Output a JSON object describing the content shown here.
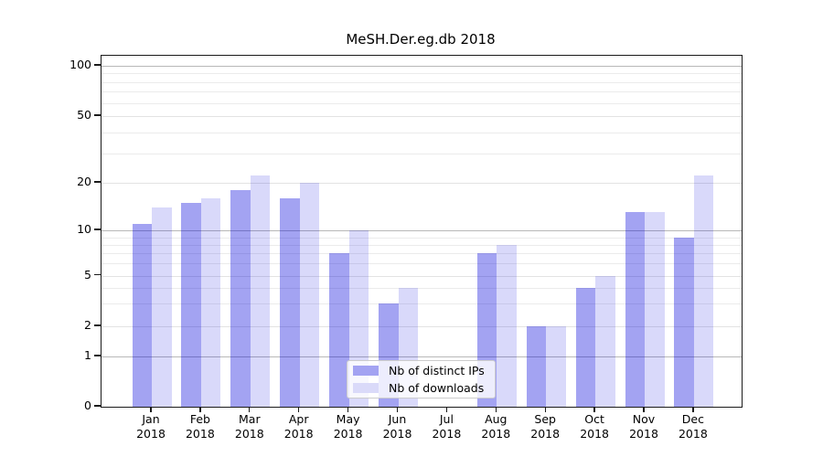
{
  "figure": {
    "title": "MeSH.Der.eg.db 2018"
  },
  "chart_data": {
    "type": "bar",
    "title": "MeSH.Der.eg.db 2018",
    "xlabel": "",
    "ylabel": "",
    "categories": [
      "Jan",
      "Feb",
      "Mar",
      "Apr",
      "May",
      "Jun",
      "Jul",
      "Aug",
      "Sep",
      "Oct",
      "Nov",
      "Dec"
    ],
    "x_tick_year": "2018",
    "series": [
      {
        "name": "Nb of distinct IPs",
        "values": [
          11,
          15,
          18,
          16,
          7,
          3,
          0,
          7,
          2,
          4,
          13,
          9
        ],
        "fill": "rgba(0,0,220,0.36)",
        "legend_swatch": "#a3a3f2"
      },
      {
        "name": "Nb of downloads",
        "values": [
          14,
          16,
          22,
          20,
          10,
          4,
          0,
          8,
          2,
          5,
          13,
          22
        ],
        "fill": "rgba(0,0,220,0.15)",
        "legend_swatch": "#dadaf9"
      }
    ],
    "y_ticks": [
      0,
      1,
      2,
      5,
      10,
      20,
      50,
      100
    ],
    "ylim": [
      0,
      110
    ],
    "y_scale": "log-above-1-with-zero-baseline",
    "grid": true,
    "gridlines": {
      "major": [
        1,
        10,
        100
      ],
      "labeled_minor": [
        2,
        5,
        20,
        50
      ],
      "minor": [
        3,
        4,
        6,
        7,
        8,
        9,
        30,
        40,
        60,
        70,
        80,
        90
      ]
    },
    "legend": {
      "position": "lower center",
      "entries": [
        "Nb of distinct IPs",
        "Nb of downloads"
      ]
    }
  }
}
